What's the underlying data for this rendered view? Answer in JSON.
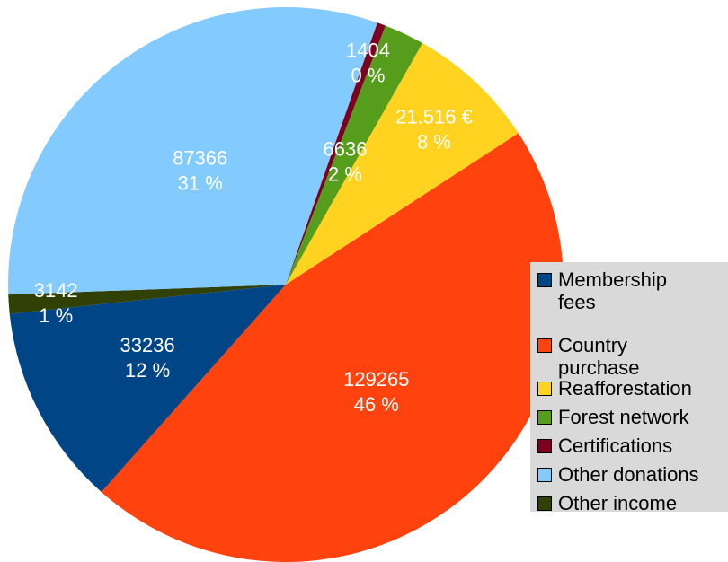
{
  "chart_data": {
    "type": "pie",
    "title": "",
    "slices": [
      {
        "name": "Membership fees",
        "value": 33236,
        "pct_label": "12 %",
        "value_label": "33236",
        "color": "#004586"
      },
      {
        "name": "Country purchase",
        "value": 129265,
        "pct_label": "46 %",
        "value_label": "129265",
        "color": "#ff420e"
      },
      {
        "name": "Reafforestation",
        "value": 21516,
        "pct_label": "8 %",
        "value_label": "21.516 €",
        "color": "#ffd320"
      },
      {
        "name": "Forest network",
        "value": 6636,
        "pct_label": "2 %",
        "value_label": "6636",
        "color": "#579d1c"
      },
      {
        "name": "Certifications",
        "value": 1404,
        "pct_label": "0 %",
        "value_label": "1404",
        "color": "#7e0021"
      },
      {
        "name": "Other donations",
        "value": 87366,
        "pct_label": "31 %",
        "value_label": "87366",
        "color": "#83caff"
      },
      {
        "name": "Other income",
        "value": 3142,
        "pct_label": "1 %",
        "value_label": "3142",
        "color": "#314004"
      }
    ],
    "legend_position": "right",
    "legend": [
      {
        "label_lines": [
          "Membership",
          "fees"
        ]
      },
      {
        "label_lines": [
          "Country",
          "purchase"
        ]
      },
      {
        "label_lines": [
          "Reafforestation"
        ]
      },
      {
        "label_lines": [
          "Forest network"
        ]
      },
      {
        "label_lines": [
          "Certifications"
        ]
      },
      {
        "label_lines": [
          "Other donations"
        ]
      },
      {
        "label_lines": [
          "Other income"
        ]
      }
    ]
  }
}
